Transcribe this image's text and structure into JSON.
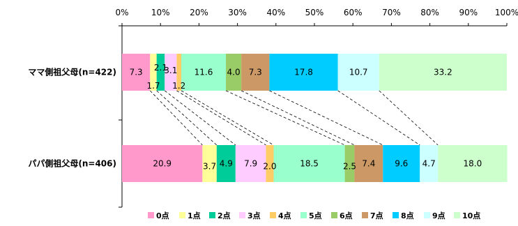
{
  "chart_data": {
    "type": "bar",
    "orientation": "horizontal",
    "stacked": "percent",
    "title": "",
    "xlabel": "",
    "ylabel": "",
    "xlim": [
      0,
      100
    ],
    "x_ticks": [
      "0%",
      "10%",
      "20%",
      "30%",
      "40%",
      "50%",
      "60%",
      "70%",
      "80%",
      "90%",
      "100%"
    ],
    "x_axis_position": "top",
    "grid": false,
    "legend_position": "bottom",
    "categories": [
      "ママ側祖父母(n=422)",
      "パパ側祖父母(n=406)"
    ],
    "series": [
      {
        "name": "0点",
        "color": "#ff99cc",
        "values": [
          7.3,
          20.9
        ]
      },
      {
        "name": "1点",
        "color": "#ffff99",
        "values": [
          1.7,
          3.7
        ]
      },
      {
        "name": "2点",
        "color": "#00cc99",
        "values": [
          2.1,
          4.9
        ]
      },
      {
        "name": "3点",
        "color": "#ffccff",
        "values": [
          3.1,
          7.9
        ]
      },
      {
        "name": "4点",
        "color": "#ffcc66",
        "values": [
          1.2,
          2.0
        ]
      },
      {
        "name": "5点",
        "color": "#99ffcc",
        "values": [
          11.6,
          18.5
        ]
      },
      {
        "name": "6点",
        "color": "#99cc66",
        "values": [
          4.0,
          2.5
        ]
      },
      {
        "name": "7点",
        "color": "#cc9966",
        "values": [
          7.3,
          7.4
        ]
      },
      {
        "name": "8点",
        "color": "#00ccff",
        "values": [
          17.8,
          9.6
        ]
      },
      {
        "name": "9点",
        "color": "#ccffff",
        "values": [
          10.7,
          4.7
        ]
      },
      {
        "name": "10点",
        "color": "#ccffcc",
        "values": [
          33.2,
          18.0
        ]
      }
    ]
  }
}
